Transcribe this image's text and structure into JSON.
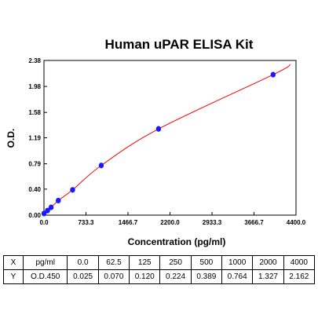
{
  "chart_data": {
    "type": "line",
    "title": "Human uPAR ELISA Kit",
    "xlabel": "Concentration (pg/ml)",
    "ylabel": "O.D.",
    "xlim": [
      0,
      4400
    ],
    "ylim": [
      0,
      2.38
    ],
    "x_ticks": [
      "0.0",
      "733.3",
      "1466.7",
      "2200.0",
      "2933.3",
      "3666.7",
      "4400.0"
    ],
    "x_tick_values": [
      0,
      733.3,
      1466.7,
      2200,
      2933.3,
      3666.7,
      4400
    ],
    "y_ticks": [
      "0.00",
      "0.40",
      "0.79",
      "1.19",
      "1.58",
      "1.98",
      "2.38"
    ],
    "y_tick_values": [
      0,
      0.4,
      0.79,
      1.19,
      1.58,
      1.98,
      2.38
    ],
    "grid": false,
    "series": [
      {
        "x": [
          0,
          62.5,
          125,
          250,
          500,
          1000,
          2000,
          4000
        ],
        "y": [
          0.025,
          0.07,
          0.12,
          0.224,
          0.389,
          0.764,
          1.327,
          2.162
        ]
      }
    ],
    "colors": {
      "curve": "#ff0000",
      "points": "#1a1aff",
      "frame": "#000000"
    }
  },
  "table": {
    "x_row": {
      "key": "X",
      "unit": "pg/ml",
      "values": [
        "0.0",
        "62.5",
        "125",
        "250",
        "500",
        "1000",
        "2000",
        "4000"
      ]
    },
    "y_row": {
      "key": "Y",
      "unit": "O.D.450",
      "values": [
        "0.025",
        "0.070",
        "0.120",
        "0.224",
        "0.389",
        "0.764",
        "1.327",
        "2.162"
      ]
    }
  }
}
